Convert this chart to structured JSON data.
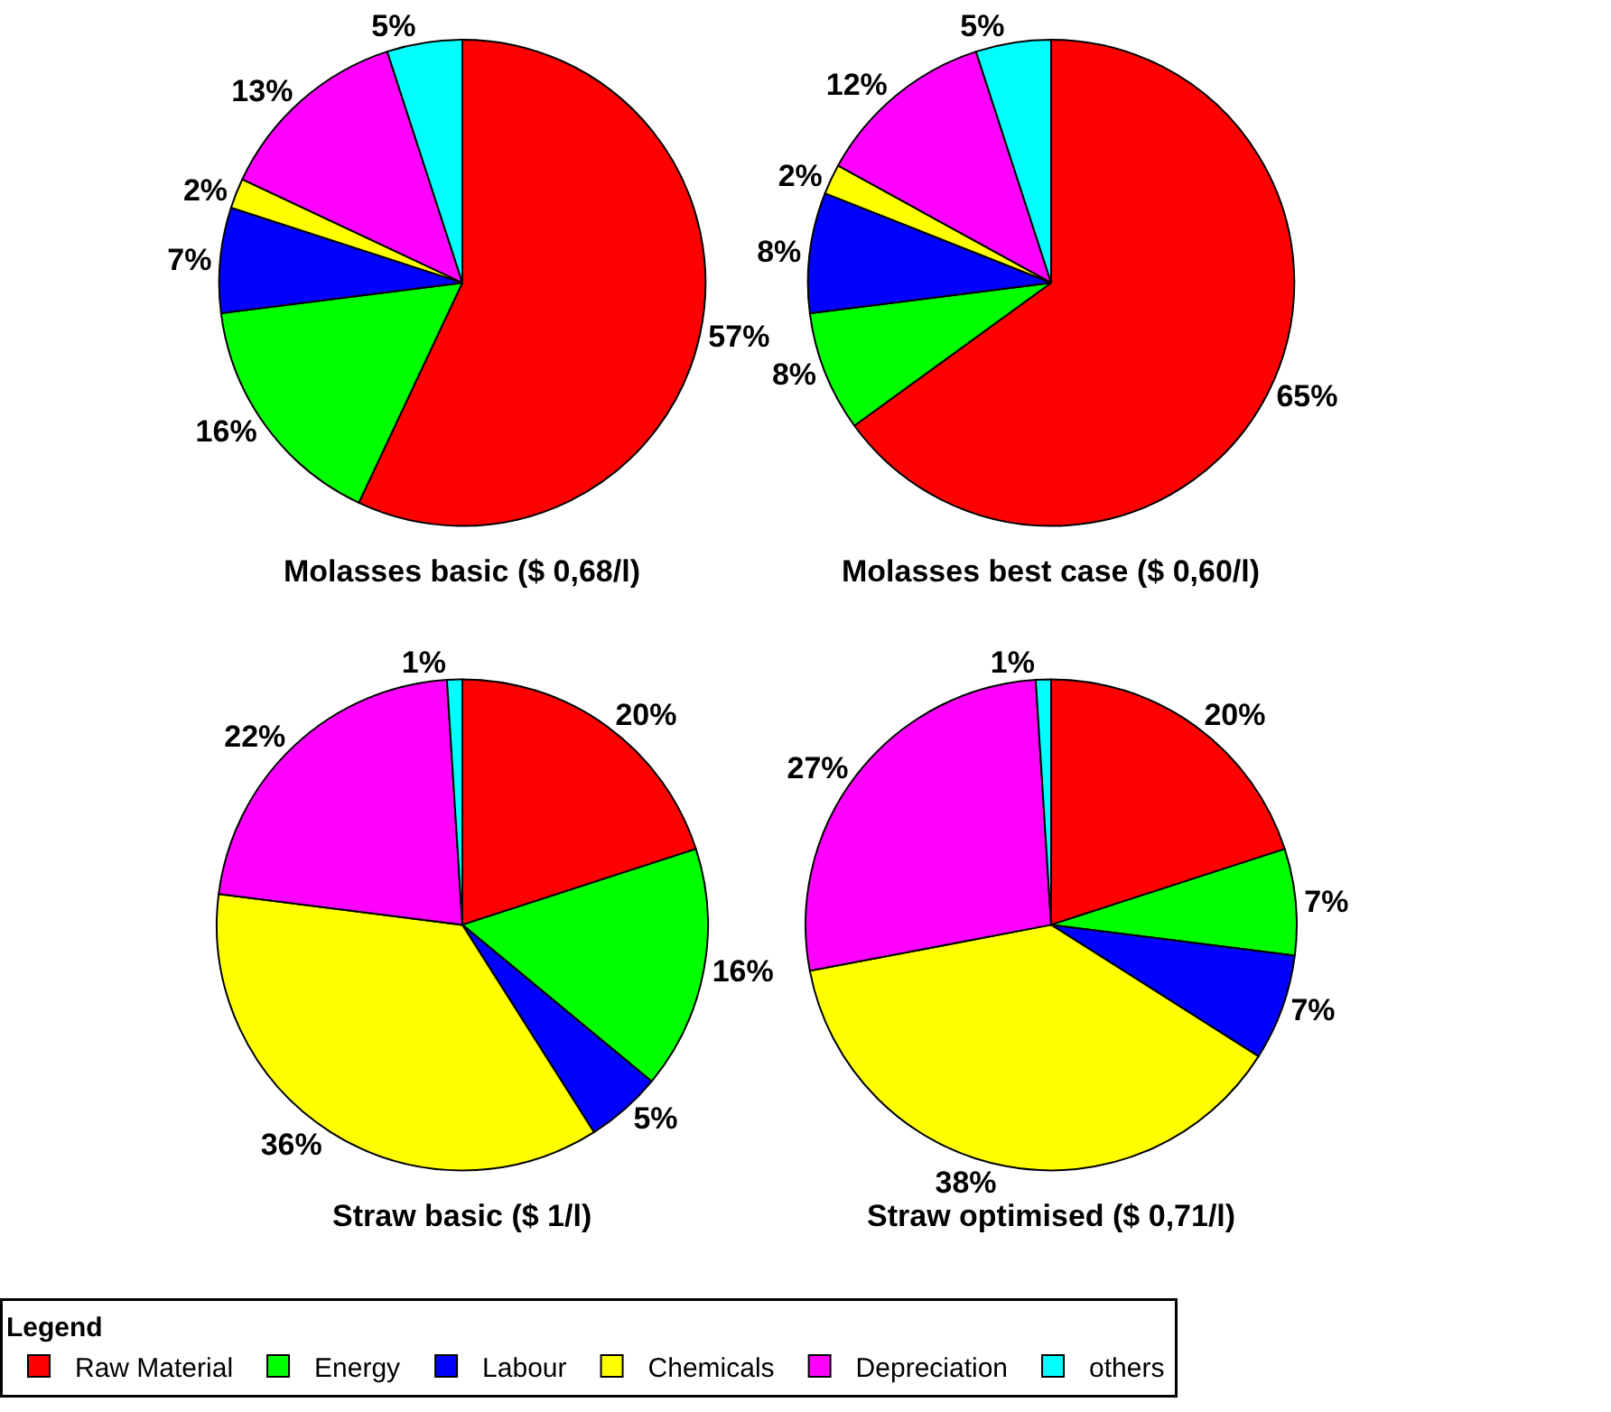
{
  "chart_data": [
    {
      "type": "pie",
      "title": "Molasses basic ($ 0,68/l)",
      "legend": "bottom",
      "legend_title": "Legend",
      "categories": [
        "Raw Material",
        "Energy",
        "Labour",
        "Chemicals",
        "Depreciation",
        "others"
      ],
      "values": [
        57,
        16,
        7,
        2,
        13,
        5
      ],
      "value_labels": [
        "57%",
        "16%",
        "7%",
        "2%",
        "13%",
        "5%"
      ],
      "colors": [
        "#ff0000",
        "#00ff00",
        "#0000ff",
        "#ffff00",
        "#ff00ff",
        "#00ffff"
      ]
    },
    {
      "type": "pie",
      "title": "Molasses best case ($ 0,60/l)",
      "categories": [
        null,
        null,
        null,
        null,
        null,
        null
      ],
      "values": [
        65,
        8,
        8,
        2,
        12,
        5
      ],
      "value_labels": [
        "65%",
        "8%",
        "8%",
        "2%",
        "12%",
        "5%"
      ],
      "colors": [
        "#ff0000",
        "#00ff00",
        "#0000ff",
        "#ffff00",
        "#ff00ff",
        "#00ffff"
      ]
    },
    {
      "type": "pie",
      "title": "Straw basic ($ 1/l)",
      "categories": [
        null,
        null,
        null,
        null,
        null,
        null
      ],
      "values": [
        20,
        16,
        5,
        36,
        22,
        1
      ],
      "value_labels": [
        "20%",
        "16%",
        "5%",
        "36%",
        "22%",
        "1%"
      ],
      "colors": [
        "#ff0000",
        "#00ff00",
        "#0000ff",
        "#ffff00",
        "#ff00ff",
        "#00ffff"
      ]
    },
    {
      "type": "pie",
      "title": "Straw optimised ($ 0,71/l)",
      "categories": [
        null,
        null,
        null,
        null,
        null,
        null
      ],
      "values": [
        20,
        7,
        7,
        38,
        27,
        1
      ],
      "value_labels": [
        "20%",
        "7%",
        "7%",
        "38%",
        "27%",
        "1%"
      ],
      "colors": [
        "#ff0000",
        "#00ff00",
        "#0000ff",
        "#ffff00",
        "#ff00ff",
        "#00ffff"
      ]
    }
  ]
}
